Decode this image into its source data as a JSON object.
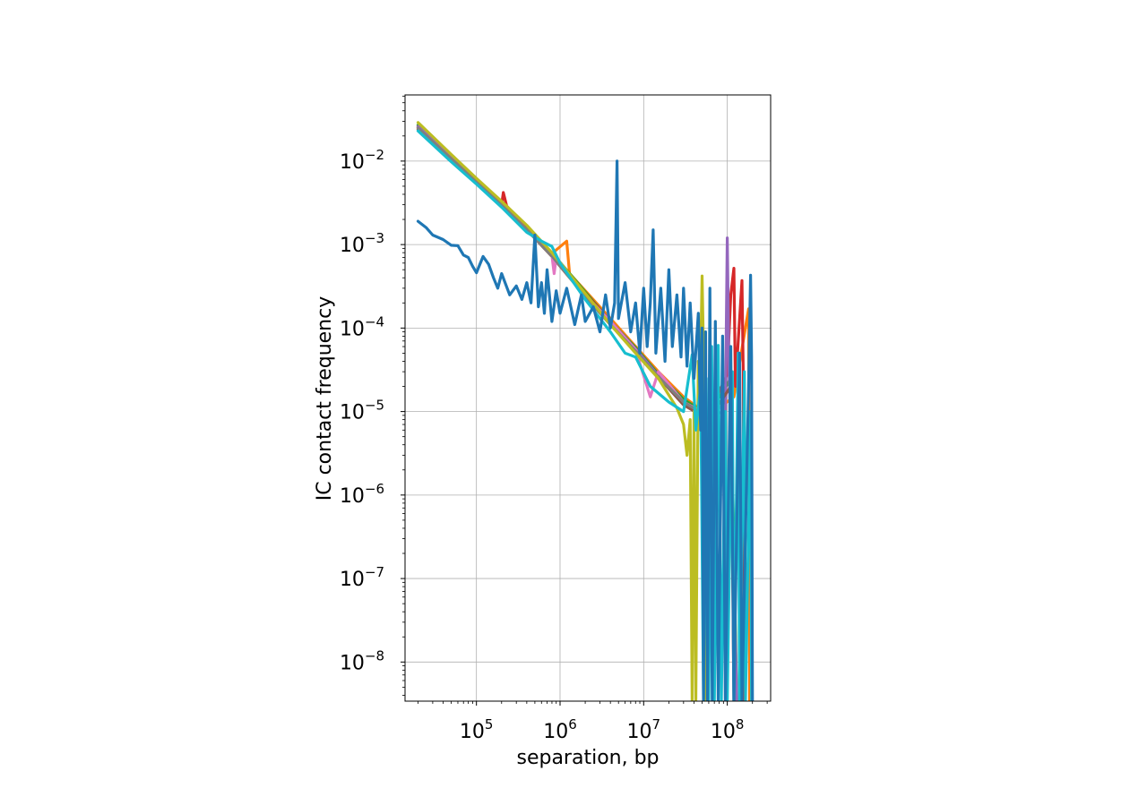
{
  "chart_data": {
    "type": "line",
    "xlabel": "separation, bp",
    "ylabel": "IC contact frequency",
    "xscale": "log",
    "yscale": "log",
    "xlim": [
      14000,
      330000000
    ],
    "ylim": [
      3.4e-09,
      0.062
    ],
    "grid": true,
    "x_ticks": [
      {
        "value": 100000,
        "base": "10",
        "exp": "5"
      },
      {
        "value": 1000000,
        "base": "10",
        "exp": "6"
      },
      {
        "value": 10000000,
        "base": "10",
        "exp": "7"
      },
      {
        "value": 100000000,
        "base": "10",
        "exp": "8"
      }
    ],
    "y_ticks": [
      {
        "value": 0.01,
        "base": "10",
        "exp": "−2"
      },
      {
        "value": 0.001,
        "base": "10",
        "exp": "−3"
      },
      {
        "value": 0.0001,
        "base": "10",
        "exp": "−4"
      },
      {
        "value": 1e-05,
        "base": "10",
        "exp": "−5"
      },
      {
        "value": 1e-06,
        "base": "10",
        "exp": "−6"
      },
      {
        "value": 1e-07,
        "base": "10",
        "exp": "−7"
      },
      {
        "value": 1e-08,
        "base": "10",
        "exp": "−8"
      }
    ],
    "series": [
      {
        "color": "#ff7f0e",
        "points": [
          [
            20000,
            0.026
          ],
          [
            50000,
            0.011
          ],
          [
            100000,
            0.0058
          ],
          [
            200000,
            0.0031
          ],
          [
            400000,
            0.0016
          ],
          [
            800000,
            0.00078
          ],
          [
            1200000,
            0.0011
          ],
          [
            1300000,
            0.00045
          ],
          [
            2000000,
            0.00028
          ],
          [
            4000000,
            0.00013
          ],
          [
            8000000,
            6e-05
          ],
          [
            15000000,
            3e-05
          ],
          [
            30000000,
            1.5e-05
          ],
          [
            60000000,
            9e-06
          ],
          [
            120000000,
            1.5e-05
          ],
          [
            180000000,
            0.00017
          ],
          [
            185000000,
            3.4e-09
          ]
        ]
      },
      {
        "color": "#2ca02c",
        "points": [
          [
            20000,
            0.027
          ],
          [
            50000,
            0.0115
          ],
          [
            100000,
            0.006
          ],
          [
            200000,
            0.0032
          ],
          [
            400000,
            0.0016
          ],
          [
            800000,
            0.0008
          ],
          [
            2000000,
            0.00027
          ],
          [
            4000000,
            0.00012
          ],
          [
            8000000,
            5.8e-05
          ],
          [
            15000000,
            2.8e-05
          ],
          [
            30000000,
            1.4e-05
          ],
          [
            60000000,
            9e-06
          ],
          [
            110000000,
            2.5e-05
          ],
          [
            130000000,
            3.4e-09
          ]
        ]
      },
      {
        "color": "#d62728",
        "points": [
          [
            20000,
            0.025
          ],
          [
            50000,
            0.0108
          ],
          [
            100000,
            0.0057
          ],
          [
            200000,
            0.003
          ],
          [
            210000,
            0.0042
          ],
          [
            230000,
            0.0029
          ],
          [
            400000,
            0.0015
          ],
          [
            800000,
            0.00075
          ],
          [
            2000000,
            0.00026
          ],
          [
            4000000,
            0.00012
          ],
          [
            8000000,
            5.5e-05
          ],
          [
            15000000,
            2.7e-05
          ],
          [
            30000000,
            1.3e-05
          ],
          [
            60000000,
            9e-06
          ],
          [
            100000000,
            2.8e-05
          ],
          [
            110000000,
            0.00025
          ],
          [
            120000000,
            0.00052
          ],
          [
            125000000,
            2e-05
          ],
          [
            150000000,
            0.00037
          ],
          [
            155000000,
            3e-05
          ],
          [
            160000000,
            3.4e-09
          ]
        ]
      },
      {
        "color": "#9467bd",
        "points": [
          [
            20000,
            0.026
          ],
          [
            50000,
            0.011
          ],
          [
            100000,
            0.0059
          ],
          [
            200000,
            0.003
          ],
          [
            400000,
            0.0015
          ],
          [
            800000,
            0.00074
          ],
          [
            2000000,
            0.00025
          ],
          [
            4000000,
            0.00012
          ],
          [
            8000000,
            5.6e-05
          ],
          [
            15000000,
            2.7e-05
          ],
          [
            30000000,
            1.3e-05
          ],
          [
            60000000,
            9e-06
          ],
          [
            95000000,
            1e-05
          ],
          [
            100000000,
            0.0012
          ],
          [
            105000000,
            3e-05
          ],
          [
            130000000,
            3.4e-09
          ]
        ]
      },
      {
        "color": "#8c564b",
        "points": [
          [
            20000,
            0.024
          ],
          [
            50000,
            0.0105
          ],
          [
            100000,
            0.0056
          ],
          [
            200000,
            0.0029
          ],
          [
            400000,
            0.0015
          ],
          [
            800000,
            0.00072
          ],
          [
            2000000,
            0.00024
          ],
          [
            4000000,
            0.00011
          ],
          [
            8000000,
            5.2e-05
          ],
          [
            15000000,
            2.6e-05
          ],
          [
            30000000,
            1.2e-05
          ],
          [
            60000000,
            8e-06
          ],
          [
            110000000,
            2e-05
          ],
          [
            120000000,
            3.4e-09
          ]
        ]
      },
      {
        "color": "#e377c2",
        "points": [
          [
            20000,
            0.025
          ],
          [
            50000,
            0.0108
          ],
          [
            100000,
            0.0057
          ],
          [
            200000,
            0.003
          ],
          [
            400000,
            0.0015
          ],
          [
            800000,
            0.00074
          ],
          [
            850000,
            0.00045
          ],
          [
            900000,
            0.0007
          ],
          [
            2000000,
            0.00025
          ],
          [
            4000000,
            0.00012
          ],
          [
            8000000,
            5.5e-05
          ],
          [
            12000000,
            1.5e-05
          ],
          [
            15000000,
            3e-05
          ],
          [
            30000000,
            1.3e-05
          ],
          [
            60000000,
            9e-06
          ],
          [
            90000000,
            1.2e-05
          ],
          [
            95000000,
            3.4e-09
          ]
        ]
      },
      {
        "color": "#7f7f7f",
        "points": [
          [
            20000,
            0.025
          ],
          [
            50000,
            0.0107
          ],
          [
            100000,
            0.0057
          ],
          [
            200000,
            0.003
          ],
          [
            400000,
            0.0015
          ],
          [
            800000,
            0.00073
          ],
          [
            2000000,
            0.00024
          ],
          [
            4000000,
            0.00011
          ],
          [
            8000000,
            5.3e-05
          ],
          [
            15000000,
            2.6e-05
          ],
          [
            30000000,
            1.3e-05
          ],
          [
            55000000,
            9e-06
          ],
          [
            60000000,
            3.4e-09
          ]
        ]
      },
      {
        "color": "#bcbd22",
        "points": [
          [
            20000,
            0.029
          ],
          [
            50000,
            0.012
          ],
          [
            100000,
            0.0062
          ],
          [
            200000,
            0.0033
          ],
          [
            400000,
            0.0017
          ],
          [
            800000,
            0.0008
          ],
          [
            2000000,
            0.00026
          ],
          [
            4000000,
            0.00011
          ],
          [
            8000000,
            5e-05
          ],
          [
            15000000,
            2.5e-05
          ],
          [
            25000000,
            1.1e-05
          ],
          [
            30000000,
            7e-06
          ],
          [
            33000000,
            3e-06
          ],
          [
            36000000,
            8e-06
          ],
          [
            38000000,
            3.4e-09
          ],
          [
            40000000,
            1e-05
          ],
          [
            42000000,
            3.4e-09
          ],
          [
            45000000,
            4e-05
          ],
          [
            47000000,
            1.2e-05
          ],
          [
            50000000,
            0.00042
          ],
          [
            52000000,
            5e-05
          ],
          [
            54000000,
            3.4e-09
          ]
        ]
      },
      {
        "color": "#17becf",
        "points": [
          [
            20000,
            0.023
          ],
          [
            50000,
            0.0098
          ],
          [
            100000,
            0.0053
          ],
          [
            200000,
            0.0028
          ],
          [
            400000,
            0.0014
          ],
          [
            600000,
            0.0011
          ],
          [
            800000,
            0.00095
          ],
          [
            1000000,
            0.0006
          ],
          [
            2000000,
            0.00022
          ],
          [
            4000000,
            9e-05
          ],
          [
            6000000,
            5e-05
          ],
          [
            8000000,
            4.5e-05
          ],
          [
            12000000,
            2e-05
          ],
          [
            20000000,
            1.3e-05
          ],
          [
            30000000,
            1e-05
          ],
          [
            38000000,
            4.8e-05
          ],
          [
            42000000,
            6e-06
          ],
          [
            48000000,
            2e-05
          ],
          [
            52000000,
            3.4e-09
          ],
          [
            56000000,
            2.5e-05
          ],
          [
            60000000,
            3.4e-09
          ],
          [
            65000000,
            6e-05
          ],
          [
            70000000,
            3.4e-09
          ],
          [
            78000000,
            6.2e-05
          ],
          [
            85000000,
            3.4e-09
          ],
          [
            95000000,
            1e-05
          ],
          [
            100000000,
            3.4e-09
          ],
          [
            115000000,
            3e-05
          ],
          [
            120000000,
            3.4e-09
          ],
          [
            135000000,
            5e-05
          ],
          [
            140000000,
            3.4e-09
          ],
          [
            160000000,
            3e-05
          ],
          [
            165000000,
            3.4e-09
          ],
          [
            190000000,
            1e-05
          ],
          [
            195000000,
            3.4e-09
          ]
        ]
      },
      {
        "color": "#1f77b4",
        "points": [
          [
            20000,
            0.0019
          ],
          [
            25000,
            0.0016
          ],
          [
            30000,
            0.0013
          ],
          [
            40000,
            0.00115
          ],
          [
            50000,
            0.00098
          ],
          [
            60000,
            0.00097
          ],
          [
            70000,
            0.00075
          ],
          [
            80000,
            0.0007
          ],
          [
            90000,
            0.00055
          ],
          [
            100000,
            0.00046
          ],
          [
            120000,
            0.00072
          ],
          [
            140000,
            0.00058
          ],
          [
            160000,
            0.0004
          ],
          [
            180000,
            0.0003
          ],
          [
            200000,
            0.00045
          ],
          [
            220000,
            0.00035
          ],
          [
            250000,
            0.00025
          ],
          [
            300000,
            0.00032
          ],
          [
            350000,
            0.00022
          ],
          [
            400000,
            0.00035
          ],
          [
            450000,
            0.0002
          ],
          [
            500000,
            0.0013
          ],
          [
            550000,
            0.00018
          ],
          [
            600000,
            0.00035
          ],
          [
            650000,
            0.00015
          ],
          [
            700000,
            0.0005
          ],
          [
            800000,
            0.00012
          ],
          [
            900000,
            0.00028
          ],
          [
            1000000,
            0.00015
          ],
          [
            1200000,
            0.0003
          ],
          [
            1500000,
            0.00011
          ],
          [
            1800000,
            0.00025
          ],
          [
            2000000,
            0.00012
          ],
          [
            2500000,
            0.00018
          ],
          [
            3000000,
            9e-05
          ],
          [
            3500000,
            0.00025
          ],
          [
            4000000,
            0.0001
          ],
          [
            4500000,
            0.0002
          ],
          [
            4800000,
            0.01
          ],
          [
            5000000,
            0.00013
          ],
          [
            6000000,
            0.00035
          ],
          [
            7000000,
            9e-05
          ],
          [
            8000000,
            0.0002
          ],
          [
            9000000,
            5e-05
          ],
          [
            10000000,
            0.0003
          ],
          [
            11000000,
            6e-05
          ],
          [
            12000000,
            0.0002
          ],
          [
            13000000,
            0.0015
          ],
          [
            14000000,
            5e-05
          ],
          [
            16000000,
            0.0003
          ],
          [
            18000000,
            4e-05
          ],
          [
            20000000,
            0.0005
          ],
          [
            22000000,
            6e-05
          ],
          [
            25000000,
            0.00025
          ],
          [
            28000000,
            4.5e-05
          ],
          [
            30000000,
            0.0003
          ],
          [
            33000000,
            3.5e-05
          ],
          [
            36000000,
            0.0002
          ],
          [
            40000000,
            2.5e-05
          ],
          [
            45000000,
            0.00015
          ],
          [
            48000000,
            6e-06
          ],
          [
            50000000,
            0.0001
          ],
          [
            52000000,
            3.4e-09
          ],
          [
            55000000,
            9e-05
          ],
          [
            58000000,
            3.4e-09
          ],
          [
            62000000,
            0.0003
          ],
          [
            66000000,
            3.4e-09
          ],
          [
            72000000,
            0.00012
          ],
          [
            78000000,
            3.4e-09
          ],
          [
            88000000,
            8e-05
          ],
          [
            95000000,
            3.4e-09
          ],
          [
            110000000,
            6e-05
          ],
          [
            120000000,
            3.4e-09
          ],
          [
            140000000,
            5e-05
          ],
          [
            150000000,
            3.4e-09
          ],
          [
            180000000,
            2e-05
          ],
          [
            190000000,
            0.00043
          ],
          [
            195000000,
            4.5e-05
          ],
          [
            200000000,
            3.4e-09
          ]
        ]
      }
    ]
  }
}
